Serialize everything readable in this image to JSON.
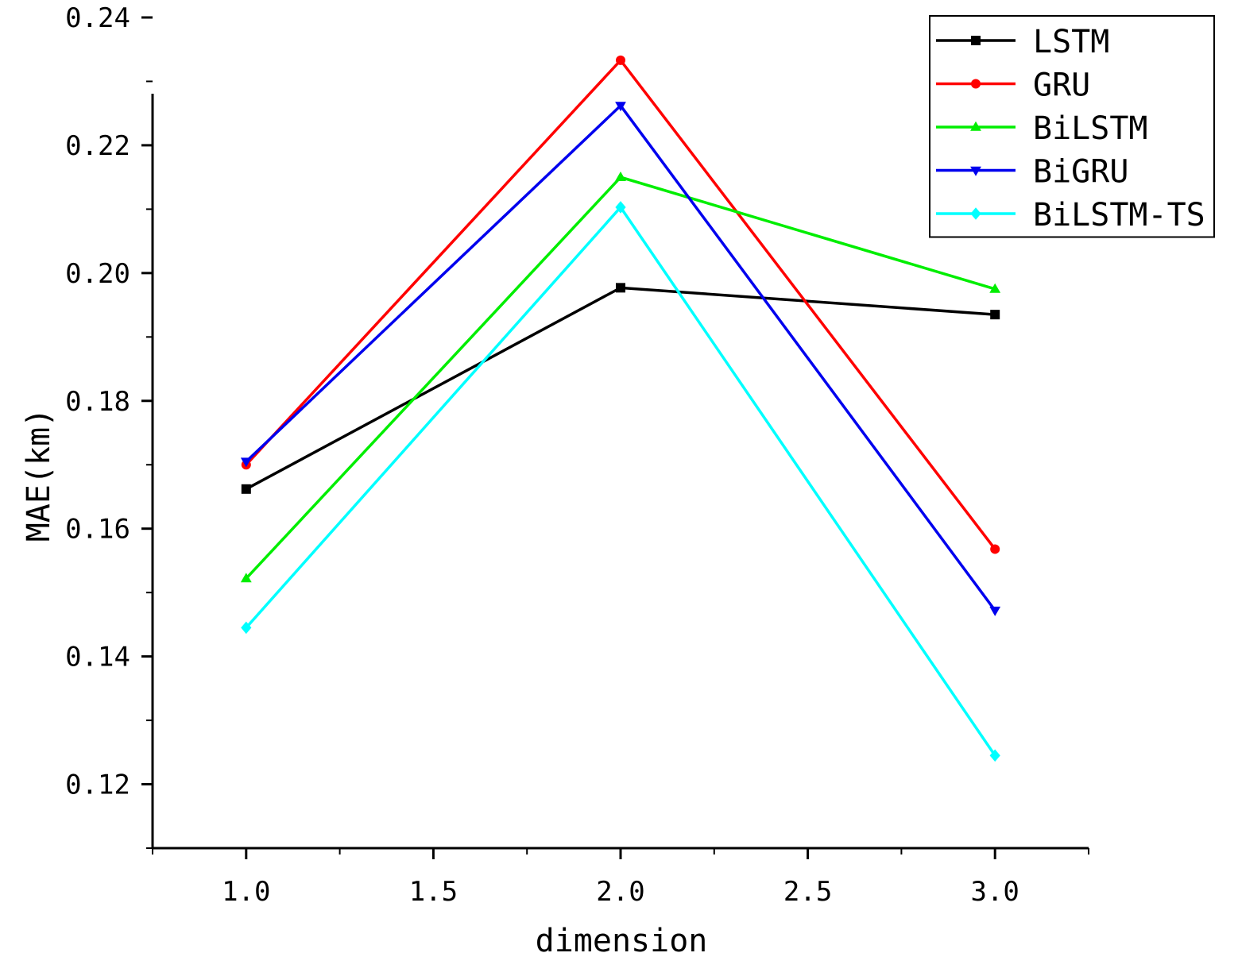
{
  "chart_data": {
    "type": "line",
    "title": "",
    "xlabel": "dimension",
    "ylabel": "MAE(km)",
    "x": [
      1.0,
      2.0,
      3.0
    ],
    "xlim": [
      0.75,
      3.25
    ],
    "ylim": [
      0.11,
      0.24
    ],
    "xticks": [
      1.0,
      1.5,
      2.0,
      2.5,
      3.0
    ],
    "xtick_labels": [
      "1.0",
      "1.5",
      "2.0",
      "2.5",
      "3.0"
    ],
    "yticks": [
      0.12,
      0.14,
      0.16,
      0.18,
      0.2,
      0.22,
      0.24
    ],
    "ytick_labels": [
      "0.12",
      "0.14",
      "0.16",
      "0.18",
      "0.20",
      "0.22",
      "0.24"
    ],
    "grid": false,
    "legend_position": "top-right",
    "series": [
      {
        "name": "LSTM",
        "color": "#000000",
        "marker": "square",
        "values": [
          0.1662,
          0.1977,
          0.1935
        ]
      },
      {
        "name": "GRU",
        "color": "#ff0000",
        "marker": "circle",
        "values": [
          0.17,
          0.2333,
          0.1568
        ]
      },
      {
        "name": "BiLSTM",
        "color": "#00ee00",
        "marker": "triangle-up",
        "values": [
          0.1522,
          0.215,
          0.1975
        ]
      },
      {
        "name": "BiGRU",
        "color": "#0000ee",
        "marker": "triangle-down",
        "values": [
          0.1705,
          0.2262,
          0.1472
        ]
      },
      {
        "name": "BiLSTM-TS",
        "color": "#00ffff",
        "marker": "diamond",
        "values": [
          0.1445,
          0.2103,
          0.1245
        ]
      }
    ]
  }
}
